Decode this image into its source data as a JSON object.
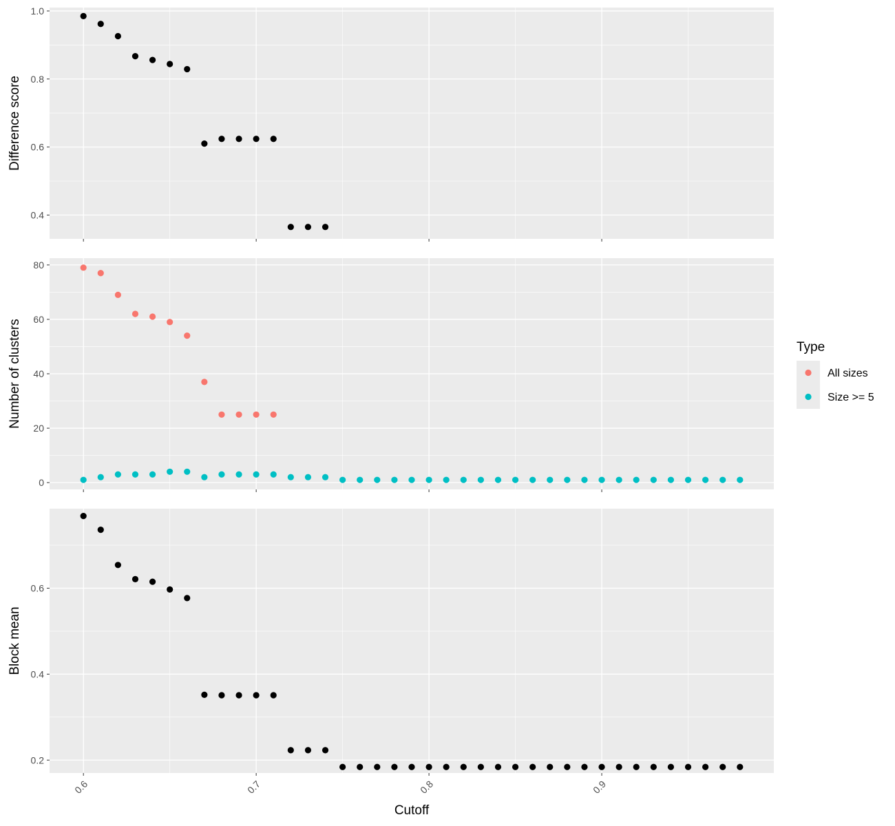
{
  "chart_data": [
    {
      "type": "scatter",
      "panel": "top",
      "ylabel": "Difference score",
      "ylim": [
        0.33,
        1.01
      ],
      "yticks": [
        0.4,
        0.6,
        0.8,
        1.0
      ],
      "ytick_labels": [
        "0.4",
        "0.6",
        "0.8",
        "1.0"
      ],
      "xlim": [
        0.5804,
        0.9996
      ],
      "grid": true,
      "series": [
        {
          "color": "#000000",
          "points": [
            [
              0.6,
              0.985
            ],
            [
              0.61,
              0.962
            ],
            [
              0.62,
              0.926
            ],
            [
              0.63,
              0.867
            ],
            [
              0.64,
              0.856
            ],
            [
              0.65,
              0.844
            ],
            [
              0.66,
              0.829
            ],
            [
              0.67,
              0.61
            ],
            [
              0.68,
              0.624
            ],
            [
              0.69,
              0.624
            ],
            [
              0.7,
              0.624
            ],
            [
              0.71,
              0.624
            ],
            [
              0.72,
              0.365
            ],
            [
              0.73,
              0.365
            ],
            [
              0.74,
              0.365
            ]
          ]
        }
      ]
    },
    {
      "type": "scatter",
      "panel": "middle",
      "ylabel": "Number of clusters",
      "ylim": [
        -2.5,
        82.5
      ],
      "yticks": [
        0,
        20,
        40,
        60,
        80
      ],
      "ytick_labels": [
        "0",
        "20",
        "40",
        "60",
        "80"
      ],
      "xlim": [
        0.5804,
        0.9996
      ],
      "grid": true,
      "legend": {
        "title": "Type",
        "placement": "right",
        "entries": [
          {
            "label": "All sizes",
            "color": "#F8766D"
          },
          {
            "label": "Size >= 5",
            "color": "#00BFC4"
          }
        ]
      },
      "series": [
        {
          "name": "All sizes",
          "color": "#F8766D",
          "points": [
            [
              0.6,
              79
            ],
            [
              0.61,
              77
            ],
            [
              0.62,
              69
            ],
            [
              0.63,
              62
            ],
            [
              0.64,
              61
            ],
            [
              0.65,
              59
            ],
            [
              0.66,
              54
            ],
            [
              0.67,
              37
            ],
            [
              0.68,
              25
            ],
            [
              0.69,
              25
            ],
            [
              0.7,
              25
            ],
            [
              0.71,
              25
            ]
          ]
        },
        {
          "name": "Size >= 5",
          "color": "#00BFC4",
          "points": [
            [
              0.6,
              1
            ],
            [
              0.61,
              2
            ],
            [
              0.62,
              3
            ],
            [
              0.63,
              3
            ],
            [
              0.64,
              3
            ],
            [
              0.65,
              4
            ],
            [
              0.66,
              4
            ],
            [
              0.67,
              2
            ],
            [
              0.68,
              3
            ],
            [
              0.69,
              3
            ],
            [
              0.7,
              3
            ],
            [
              0.71,
              3
            ],
            [
              0.72,
              2
            ],
            [
              0.73,
              2
            ],
            [
              0.74,
              2
            ],
            [
              0.75,
              1
            ],
            [
              0.76,
              1
            ],
            [
              0.77,
              1
            ],
            [
              0.78,
              1
            ],
            [
              0.79,
              1
            ],
            [
              0.8,
              1
            ],
            [
              0.81,
              1
            ],
            [
              0.82,
              1
            ],
            [
              0.83,
              1
            ],
            [
              0.84,
              1
            ],
            [
              0.85,
              1
            ],
            [
              0.86,
              1
            ],
            [
              0.87,
              1
            ],
            [
              0.88,
              1
            ],
            [
              0.89,
              1
            ],
            [
              0.9,
              1
            ],
            [
              0.91,
              1
            ],
            [
              0.92,
              1
            ],
            [
              0.93,
              1
            ],
            [
              0.94,
              1
            ],
            [
              0.95,
              1
            ],
            [
              0.96,
              1
            ],
            [
              0.97,
              1
            ],
            [
              0.98,
              1
            ]
          ]
        }
      ]
    },
    {
      "type": "scatter",
      "panel": "bottom",
      "ylabel": "Block mean",
      "xlabel": "Cutoff",
      "ylim": [
        0.17,
        0.785
      ],
      "yticks": [
        0.2,
        0.4,
        0.6
      ],
      "ytick_labels": [
        "0.2",
        "0.4",
        "0.6"
      ],
      "xlim": [
        0.5804,
        0.9996
      ],
      "xticks": [
        0.6,
        0.7,
        0.8,
        0.9
      ],
      "xtick_labels": [
        "0.6",
        "0.7",
        "0.8",
        "0.9"
      ],
      "grid": true,
      "series": [
        {
          "color": "#000000",
          "points": [
            [
              0.6,
              0.768
            ],
            [
              0.61,
              0.736
            ],
            [
              0.62,
              0.654
            ],
            [
              0.63,
              0.621
            ],
            [
              0.64,
              0.615
            ],
            [
              0.65,
              0.597
            ],
            [
              0.66,
              0.577
            ],
            [
              0.67,
              0.352
            ],
            [
              0.68,
              0.351
            ],
            [
              0.69,
              0.351
            ],
            [
              0.7,
              0.351
            ],
            [
              0.71,
              0.351
            ],
            [
              0.72,
              0.223
            ],
            [
              0.73,
              0.223
            ],
            [
              0.74,
              0.223
            ],
            [
              0.75,
              0.184
            ],
            [
              0.76,
              0.184
            ],
            [
              0.77,
              0.184
            ],
            [
              0.78,
              0.184
            ],
            [
              0.79,
              0.184
            ],
            [
              0.8,
              0.184
            ],
            [
              0.81,
              0.184
            ],
            [
              0.82,
              0.184
            ],
            [
              0.83,
              0.184
            ],
            [
              0.84,
              0.184
            ],
            [
              0.85,
              0.184
            ],
            [
              0.86,
              0.184
            ],
            [
              0.87,
              0.184
            ],
            [
              0.88,
              0.184
            ],
            [
              0.89,
              0.184
            ],
            [
              0.9,
              0.184
            ],
            [
              0.91,
              0.184
            ],
            [
              0.92,
              0.184
            ],
            [
              0.93,
              0.184
            ],
            [
              0.94,
              0.184
            ],
            [
              0.95,
              0.184
            ],
            [
              0.96,
              0.184
            ],
            [
              0.97,
              0.184
            ],
            [
              0.98,
              0.184
            ]
          ]
        }
      ]
    }
  ],
  "colors": {
    "panel_background": "#EBEBEB",
    "grid_major": "#FFFFFF",
    "tick_text": "#4D4D4D",
    "tick_mark": "#333333"
  }
}
